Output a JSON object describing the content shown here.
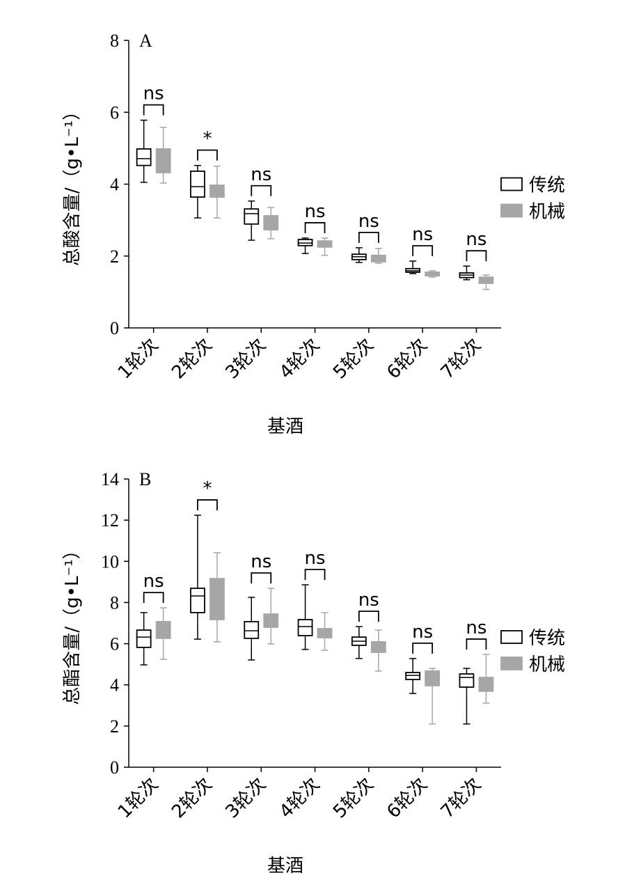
{
  "chart_data": [
    {
      "type": "box",
      "panel_label": "A",
      "y_label": "总酸含量/（g•L⁻¹）",
      "x_label": "基酒",
      "categories": [
        "1轮次",
        "2轮次",
        "3轮次",
        "4轮次",
        "5轮次",
        "6轮次",
        "7轮次"
      ],
      "ylim": [
        0,
        8
      ],
      "yticks": [
        0,
        2,
        4,
        6,
        8
      ],
      "legend": "right",
      "annotations": [
        "ns",
        "*",
        "ns",
        "ns",
        "ns",
        "ns",
        "ns"
      ],
      "series": [
        {
          "name": "传统",
          "color": "#ffffff",
          "stroke": "#000000",
          "values": [
            {
              "min": 4.05,
              "q1": 4.52,
              "median": 4.71,
              "q3": 4.98,
              "max": 5.78
            },
            {
              "min": 3.06,
              "q1": 3.64,
              "median": 3.93,
              "q3": 4.36,
              "max": 4.52
            },
            {
              "min": 2.44,
              "q1": 2.89,
              "median": 3.18,
              "q3": 3.31,
              "max": 3.53
            },
            {
              "min": 2.07,
              "q1": 2.29,
              "median": 2.36,
              "q3": 2.46,
              "max": 2.5
            },
            {
              "min": 1.82,
              "q1": 1.9,
              "median": 1.98,
              "q3": 2.05,
              "max": 2.23
            },
            {
              "min": 1.51,
              "q1": 1.55,
              "median": 1.59,
              "q3": 1.65,
              "max": 1.86
            },
            {
              "min": 1.34,
              "q1": 1.4,
              "median": 1.47,
              "q3": 1.53,
              "max": 1.72
            }
          ]
        },
        {
          "name": "机械",
          "color": "#a6a6a6",
          "stroke": "#a6a6a6",
          "values": [
            {
              "min": 4.03,
              "q1": 4.32,
              "median": 4.6,
              "q3": 4.98,
              "max": 5.58
            },
            {
              "min": 3.06,
              "q1": 3.64,
              "median": 3.84,
              "q3": 3.97,
              "max": 4.5
            },
            {
              "min": 2.48,
              "q1": 2.73,
              "median": 2.97,
              "q3": 3.12,
              "max": 3.35
            },
            {
              "min": 2.02,
              "q1": 2.25,
              "median": 2.36,
              "q3": 2.42,
              "max": 2.5
            },
            {
              "min": 1.8,
              "q1": 1.84,
              "median": 1.94,
              "q3": 2.02,
              "max": 2.21
            },
            {
              "min": 1.41,
              "q1": 1.45,
              "median": 1.49,
              "q3": 1.55,
              "max": 1.59
            },
            {
              "min": 1.07,
              "q1": 1.24,
              "median": 1.32,
              "q3": 1.41,
              "max": 1.47
            }
          ]
        }
      ]
    },
    {
      "type": "box",
      "panel_label": "B",
      "y_label": "总酯含量/（g•L⁻¹）",
      "x_label": "基酒",
      "categories": [
        "1轮次",
        "2轮次",
        "3轮次",
        "4轮次",
        "5轮次",
        "6轮次",
        "7轮次"
      ],
      "ylim": [
        0,
        14
      ],
      "yticks": [
        0,
        2,
        4,
        6,
        8,
        10,
        12,
        14
      ],
      "legend": "right",
      "annotations": [
        "ns",
        "*",
        "ns",
        "ns",
        "ns",
        "ns",
        "ns"
      ],
      "series": [
        {
          "name": "传统",
          "color": "#ffffff",
          "stroke": "#000000",
          "values": [
            {
              "min": 4.97,
              "q1": 5.82,
              "median": 6.32,
              "q3": 6.66,
              "max": 7.51
            },
            {
              "min": 6.22,
              "q1": 7.51,
              "median": 8.32,
              "q3": 8.69,
              "max": 12.24
            },
            {
              "min": 5.21,
              "q1": 6.26,
              "median": 6.63,
              "q3": 7.07,
              "max": 8.25
            },
            {
              "min": 5.72,
              "q1": 6.39,
              "median": 6.83,
              "q3": 7.17,
              "max": 8.86
            },
            {
              "min": 5.28,
              "q1": 5.92,
              "median": 6.12,
              "q3": 6.32,
              "max": 6.83
            },
            {
              "min": 3.58,
              "q1": 4.26,
              "median": 4.46,
              "q3": 4.6,
              "max": 5.28
            },
            {
              "min": 2.1,
              "q1": 3.89,
              "median": 4.36,
              "q3": 4.53,
              "max": 4.8
            }
          ]
        },
        {
          "name": "机械",
          "color": "#a6a6a6",
          "stroke": "#a6a6a6",
          "values": [
            {
              "min": 5.24,
              "q1": 6.26,
              "median": 6.66,
              "q3": 7.07,
              "max": 7.74
            },
            {
              "min": 6.09,
              "q1": 7.17,
              "median": 8.18,
              "q3": 9.16,
              "max": 10.42
            },
            {
              "min": 5.99,
              "q1": 6.8,
              "median": 7.07,
              "q3": 7.44,
              "max": 8.69
            },
            {
              "min": 5.68,
              "q1": 6.29,
              "median": 6.49,
              "q3": 6.73,
              "max": 7.51
            },
            {
              "min": 4.67,
              "q1": 5.58,
              "median": 5.85,
              "q3": 6.09,
              "max": 6.66
            },
            {
              "min": 2.1,
              "q1": 3.96,
              "median": 4.46,
              "q3": 4.67,
              "max": 4.8
            },
            {
              "min": 3.11,
              "q1": 3.69,
              "median": 4.13,
              "q3": 4.36,
              "max": 5.48
            }
          ]
        }
      ]
    }
  ]
}
